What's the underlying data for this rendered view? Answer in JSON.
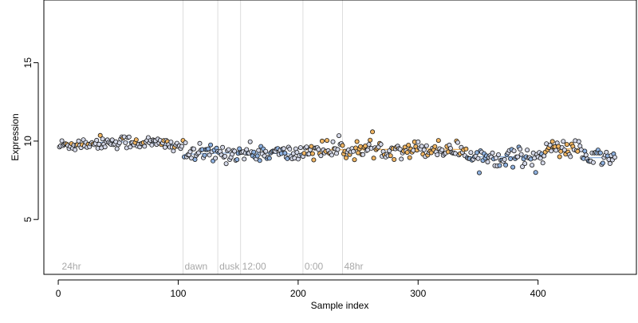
{
  "chart_data": {
    "type": "scatter",
    "xlabel": "Sample index",
    "ylabel": "Expression",
    "xlim": [
      -12,
      482
    ],
    "ylim": [
      1.5,
      19
    ],
    "x_ticks": [
      0,
      100,
      200,
      300,
      400
    ],
    "y_ticks": [
      5,
      10,
      15
    ],
    "grid": false,
    "legend": "none",
    "colors": {
      "point_fill_light": "#d4d8e8",
      "point_fill_orange": "#f0b562",
      "point_fill_blue": "#8eb1e0",
      "point_stroke": "#1a1a1a",
      "trend_line": "#8eb1e0",
      "trend_line_alt": "#f0b562",
      "marker_line": "#dddddd",
      "marker_text": "#a8a8a8"
    },
    "vertical_markers": [
      {
        "x": 104,
        "label": "dawn"
      },
      {
        "x": 133,
        "label": "dusk"
      },
      {
        "x": 152,
        "label": "12:00"
      },
      {
        "x": 204,
        "label": "0:00"
      },
      {
        "x": 237,
        "label": "48hr"
      }
    ],
    "corner_labels": [
      {
        "x": 3,
        "label": "24hr"
      }
    ],
    "segments": [
      {
        "x_start": 1,
        "x_end": 104,
        "level": 9.7,
        "noise": 0.22,
        "trend": 0.25,
        "fill": "light"
      },
      {
        "x_start": 105,
        "x_end": 204,
        "level": 9.15,
        "noise": 0.28,
        "trend": 0.1,
        "fill": "blue"
      },
      {
        "x_start": 205,
        "x_end": 262,
        "level": 9.45,
        "noise": 0.3,
        "trend": 0.0,
        "fill": "orange"
      },
      {
        "x_start": 263,
        "x_end": 340,
        "level": 9.45,
        "noise": 0.27,
        "trend": 0.05,
        "fill": "orange"
      },
      {
        "x_start": 341,
        "x_end": 405,
        "level": 9.0,
        "noise": 0.3,
        "trend": 0.0,
        "fill": "blue"
      },
      {
        "x_start": 406,
        "x_end": 436,
        "level": 9.5,
        "noise": 0.27,
        "trend": 0.0,
        "fill": "orange"
      },
      {
        "x_start": 437,
        "x_end": 464,
        "level": 8.95,
        "noise": 0.28,
        "trend": 0.0,
        "fill": "blue"
      }
    ]
  }
}
